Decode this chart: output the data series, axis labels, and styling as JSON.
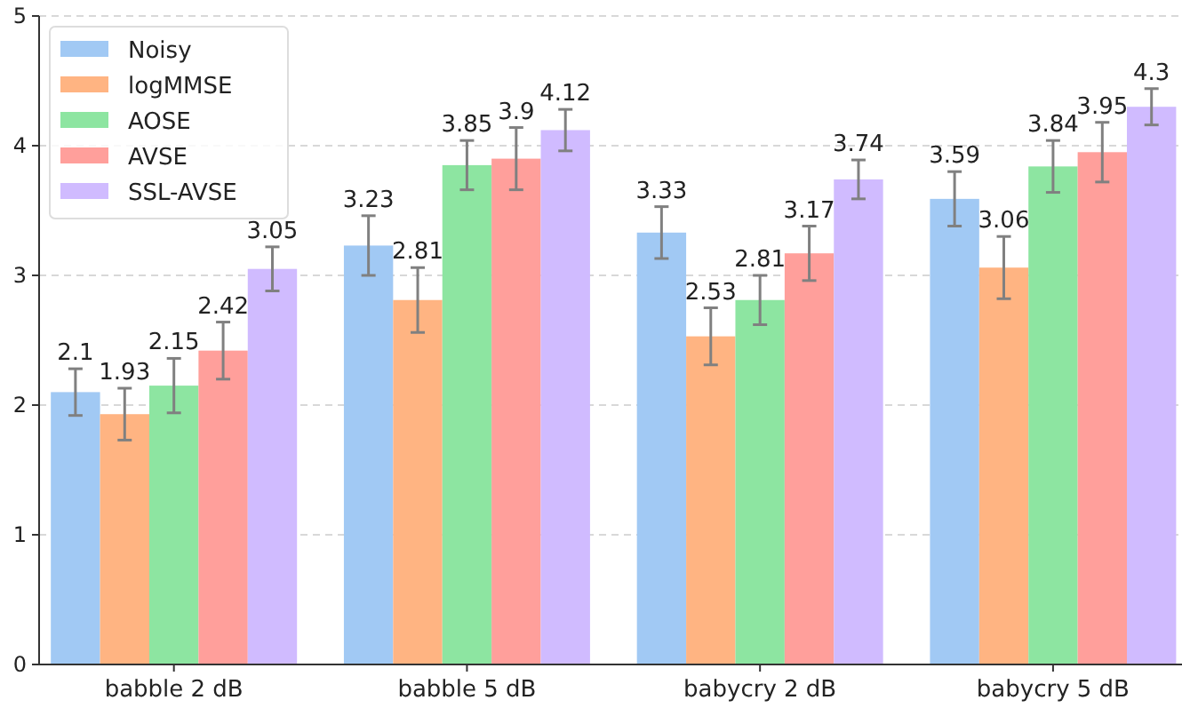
{
  "chart_data": {
    "type": "bar",
    "categories": [
      "babble 2 dB",
      "babble 5 dB",
      "babycry 2 dB",
      "babycry 5 dB"
    ],
    "series": [
      {
        "name": "Noisy",
        "color": "#a1c9f4",
        "values": [
          2.1,
          3.23,
          3.33,
          3.59
        ],
        "errors": [
          0.18,
          0.23,
          0.2,
          0.21
        ]
      },
      {
        "name": "logMMSE",
        "color": "#ffb482",
        "values": [
          1.93,
          2.81,
          2.53,
          3.06
        ],
        "errors": [
          0.2,
          0.25,
          0.22,
          0.24
        ]
      },
      {
        "name": "AOSE",
        "color": "#8de5a1",
        "values": [
          2.15,
          3.85,
          2.81,
          3.84
        ],
        "errors": [
          0.21,
          0.19,
          0.19,
          0.2
        ]
      },
      {
        "name": "AVSE",
        "color": "#ff9f9b",
        "values": [
          2.42,
          3.9,
          3.17,
          3.95
        ],
        "errors": [
          0.22,
          0.24,
          0.21,
          0.23
        ]
      },
      {
        "name": "SSL-AVSE",
        "color": "#d0bbff",
        "values": [
          3.05,
          4.12,
          3.74,
          4.3
        ],
        "errors": [
          0.17,
          0.16,
          0.15,
          0.14
        ]
      }
    ],
    "ylim": [
      0,
      5
    ],
    "yticks": [
      0,
      1,
      2,
      3,
      4,
      5
    ],
    "grid": "y",
    "legend": "top left",
    "data_labels": true
  }
}
